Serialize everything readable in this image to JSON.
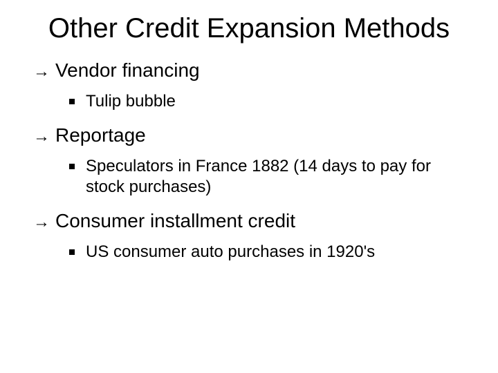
{
  "slide": {
    "title": "Other Credit Expansion Methods",
    "background_color": "#ffffff",
    "text_color": "#000000",
    "title_fontsize": 40,
    "lvl1_fontsize": 28,
    "lvl2_fontsize": 24,
    "bullets": [
      {
        "label": "Vendor financing",
        "children": [
          {
            "label": "Tulip bubble"
          }
        ]
      },
      {
        "label": "Reportage",
        "children": [
          {
            "label": "Speculators in France 1882 (14 days to pay for stock purchases)"
          }
        ]
      },
      {
        "label": "Consumer installment credit",
        "children": [
          {
            "label": "US consumer auto purchases in 1920's"
          }
        ]
      }
    ]
  }
}
